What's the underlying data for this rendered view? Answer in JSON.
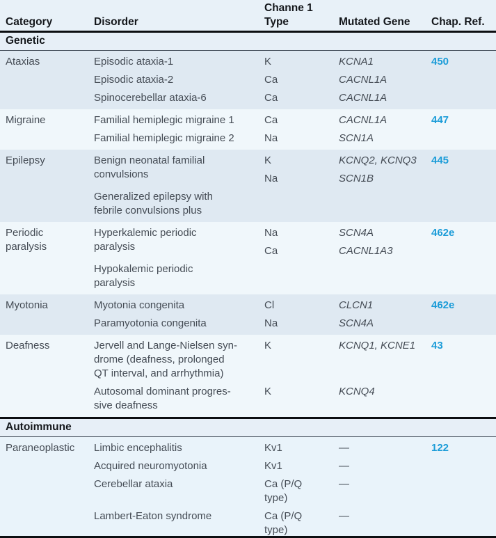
{
  "header": {
    "category": "Category",
    "disorder": "Disorder",
    "channel_line1": "Channe 1",
    "channel_line2": "Type",
    "gene": "Mutated Gene",
    "chap": "Chap. Ref."
  },
  "colors": {
    "chap_ref_blue": "#1b9cd8",
    "body_text": "#454c55",
    "heading_text": "#14171b",
    "shade_dark_blue_gray": "#dfe9f2",
    "shade_pale_blue": "#f0f7fb",
    "shade_paraneoplastic": "#e9f3fa",
    "section_band": "#e7eff7",
    "header_bg": "#e8f1f8",
    "rule_black": "#0c0e11"
  },
  "sections": [
    {
      "title": "Genetic",
      "blocks": [
        {
          "category": [
            "Ataxias"
          ],
          "shade": "a",
          "entries": [
            {
              "disorder": [
                "Episodic ataxia-1"
              ],
              "channels": [
                [
                  "K"
                ]
              ],
              "genes": [
                [
                  "KCNA1"
                ]
              ],
              "chap": "450"
            },
            {
              "disorder": [
                "Episodic ataxia-2"
              ],
              "channels": [
                [
                  "Ca"
                ]
              ],
              "genes": [
                [
                  "CACNL1A"
                ]
              ]
            },
            {
              "disorder": [
                "Spinocerebellar ataxia-6"
              ],
              "channels": [
                [
                  "Ca"
                ]
              ],
              "genes": [
                [
                  "CACNL1A"
                ]
              ]
            }
          ]
        },
        {
          "category": [
            "Migraine"
          ],
          "shade": "b",
          "entries": [
            {
              "disorder": [
                "Familial hemiplegic migraine 1"
              ],
              "channels": [
                [
                  "Ca"
                ]
              ],
              "genes": [
                [
                  "CACNL1A"
                ]
              ],
              "chap": "447"
            },
            {
              "disorder": [
                "Familial hemiplegic migraine 2"
              ],
              "channels": [
                [
                  "Na"
                ]
              ],
              "genes": [
                [
                  "SCN1A"
                ]
              ]
            }
          ]
        },
        {
          "category": [
            "Epilepsy"
          ],
          "shade": "a",
          "entries": [
            {
              "disorder": [
                "Benign neonatal familial",
                "convulsions"
              ],
              "channels": [
                [
                  "K"
                ],
                [
                  "Na"
                ]
              ],
              "genes": [
                [
                  "KCNQ2, KCNQ3"
                ],
                [
                  "SCN1B"
                ]
              ],
              "chap": "445"
            },
            {
              "disorder": [
                "Generalized epilepsy with",
                "febrile convulsions plus"
              ],
              "channels": [],
              "genes": []
            }
          ]
        },
        {
          "category": [
            "Periodic",
            "paralysis"
          ],
          "shade": "b",
          "entries": [
            {
              "disorder": [
                "Hyperkalemic periodic",
                "paralysis"
              ],
              "channels": [
                [
                  "Na"
                ],
                [
                  "Ca"
                ]
              ],
              "genes": [
                [
                  "SCN4A"
                ],
                [
                  "CACNL1A3"
                ]
              ],
              "chap": "462e"
            },
            {
              "disorder": [
                "Hypokalemic periodic",
                "paralysis"
              ],
              "channels": [],
              "genes": []
            }
          ]
        },
        {
          "category": [
            "Myotonia"
          ],
          "shade": "a",
          "entries": [
            {
              "disorder": [
                "Myotonia congenita"
              ],
              "channels": [
                [
                  "Cl"
                ]
              ],
              "genes": [
                [
                  "CLCN1"
                ]
              ],
              "chap": "462e"
            },
            {
              "disorder": [
                "Paramyotonia congenita"
              ],
              "channels": [
                [
                  "Na"
                ]
              ],
              "genes": [
                [
                  "SCN4A"
                ]
              ]
            }
          ]
        },
        {
          "category": [
            "Deafness"
          ],
          "shade": "b",
          "entries": [
            {
              "disorder": [
                "Jervell and Lange-Nielsen syn-",
                "drome (deafness, prolonged",
                "QT interval, and arrhythmia)"
              ],
              "channels": [
                [
                  "K"
                ]
              ],
              "genes": [
                [
                  "KCNQ1, KCNE1"
                ]
              ],
              "chap": "43"
            },
            {
              "disorder": [
                "Autosomal dominant progres-",
                "sive deafness"
              ],
              "channels": [
                [
                  "K"
                ]
              ],
              "genes": [
                [
                  "KCNQ4"
                ]
              ]
            }
          ]
        }
      ]
    },
    {
      "title": "Autoimmune",
      "blocks": [
        {
          "category": [
            "Paraneoplastic"
          ],
          "shade": "p",
          "entries": [
            {
              "disorder": [
                "Limbic encephalitis"
              ],
              "channels": [
                [
                  "Kv1"
                ]
              ],
              "genes": [
                [
                  "—"
                ]
              ],
              "chap": "122"
            },
            {
              "disorder": [
                "Acquired neuromyotonia"
              ],
              "channels": [
                [
                  "Kv1"
                ]
              ],
              "genes": [
                [
                  "—"
                ]
              ]
            },
            {
              "disorder": [
                "Cerebellar ataxia"
              ],
              "channels": [
                [
                  "Ca (P/Q",
                  "type)"
                ]
              ],
              "genes": [
                [
                  "—"
                ]
              ]
            },
            {
              "disorder": [
                "Lambert-Eaton syndrome"
              ],
              "channels": [
                [
                  "Ca (P/Q",
                  "type)"
                ]
              ],
              "genes": [
                [
                  "—"
                ]
              ]
            }
          ]
        }
      ]
    }
  ]
}
